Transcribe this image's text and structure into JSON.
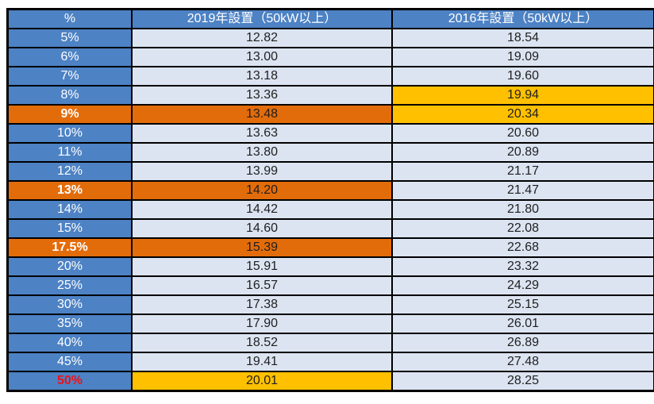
{
  "colors": {
    "header_blue": "#4d82c4",
    "row_label_blue": "#4d82c4",
    "cell_light_blue": "#dce4f1",
    "highlight_orange": "#e36c0a",
    "highlight_amber": "#ffc000",
    "alert_red": "#e8131d",
    "border_black": "#000000",
    "text_dark": "#1f1f1f",
    "text_white": "#ffffff"
  },
  "chart_data": {
    "type": "table",
    "columns": [
      "%",
      "2019年設置（50kW以上）",
      "2016年設置（50kW以上）"
    ],
    "rows": [
      {
        "label": "5%",
        "v2019": "12.82",
        "v2016": "18.54",
        "label_style": "normal",
        "s2019": "normal",
        "s2016": "normal"
      },
      {
        "label": "6%",
        "v2019": "13.00",
        "v2016": "19.09",
        "label_style": "normal",
        "s2019": "normal",
        "s2016": "normal"
      },
      {
        "label": "7%",
        "v2019": "13.18",
        "v2016": "19.60",
        "label_style": "normal",
        "s2019": "normal",
        "s2016": "normal"
      },
      {
        "label": "8%",
        "v2019": "13.36",
        "v2016": "19.94",
        "label_style": "normal",
        "s2019": "normal",
        "s2016": "amber"
      },
      {
        "label": "9%",
        "v2019": "13.48",
        "v2016": "20.34",
        "label_style": "highlight",
        "s2019": "orange",
        "s2016": "amber"
      },
      {
        "label": "10%",
        "v2019": "13.63",
        "v2016": "20.60",
        "label_style": "normal",
        "s2019": "normal",
        "s2016": "normal"
      },
      {
        "label": "11%",
        "v2019": "13.80",
        "v2016": "20.89",
        "label_style": "normal",
        "s2019": "normal",
        "s2016": "normal"
      },
      {
        "label": "12%",
        "v2019": "13.99",
        "v2016": "21.17",
        "label_style": "normal",
        "s2019": "normal",
        "s2016": "normal"
      },
      {
        "label": "13%",
        "v2019": "14.20",
        "v2016": "21.47",
        "label_style": "highlight",
        "s2019": "orange",
        "s2016": "normal"
      },
      {
        "label": "14%",
        "v2019": "14.42",
        "v2016": "21.80",
        "label_style": "normal",
        "s2019": "normal",
        "s2016": "normal"
      },
      {
        "label": "15%",
        "v2019": "14.60",
        "v2016": "22.08",
        "label_style": "normal",
        "s2019": "normal",
        "s2016": "normal"
      },
      {
        "label": "17.5%",
        "v2019": "15.39",
        "v2016": "22.68",
        "label_style": "highlight",
        "s2019": "orange",
        "s2016": "normal"
      },
      {
        "label": "20%",
        "v2019": "15.91",
        "v2016": "23.32",
        "label_style": "normal",
        "s2019": "normal",
        "s2016": "normal"
      },
      {
        "label": "25%",
        "v2019": "16.57",
        "v2016": "24.29",
        "label_style": "normal",
        "s2019": "normal",
        "s2016": "normal"
      },
      {
        "label": "30%",
        "v2019": "17.38",
        "v2016": "25.15",
        "label_style": "normal",
        "s2019": "normal",
        "s2016": "normal"
      },
      {
        "label": "35%",
        "v2019": "17.90",
        "v2016": "26.01",
        "label_style": "normal",
        "s2019": "normal",
        "s2016": "normal"
      },
      {
        "label": "40%",
        "v2019": "18.52",
        "v2016": "26.89",
        "label_style": "normal",
        "s2019": "normal",
        "s2016": "normal"
      },
      {
        "label": "45%",
        "v2019": "19.41",
        "v2016": "27.48",
        "label_style": "normal",
        "s2019": "normal",
        "s2016": "normal"
      },
      {
        "label": "50%",
        "v2019": "20.01",
        "v2016": "28.25",
        "label_style": "alert",
        "s2019": "amber",
        "s2016": "normal"
      }
    ]
  }
}
